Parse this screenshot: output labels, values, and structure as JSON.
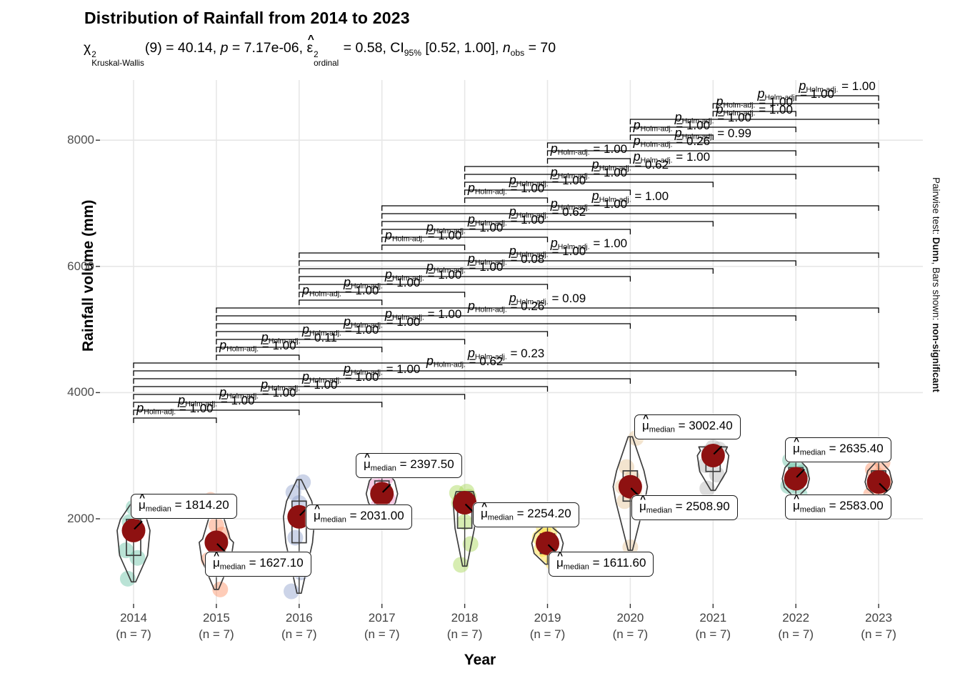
{
  "header": {
    "title": "Distribution of Rainfall from 2014 to 2023",
    "subtitle_segments": [
      {
        "text": "χ",
        "stack": {
          "sup": "2",
          "sub": "Kruskal-Wallis"
        }
      },
      {
        "text": "(9) = 40.14, "
      },
      {
        "text": "p",
        "italic": true
      },
      {
        "text": " = 7.17e-06, "
      },
      {
        "text": "ε",
        "hat": true,
        "stack": {
          "sup": "2",
          "sub": "ordinal"
        }
      },
      {
        "text": " = 0.58, CI"
      },
      {
        "text": "",
        "sub": "95%"
      },
      {
        "text": " [0.52, 1.00], "
      },
      {
        "text": "n",
        "italic": true
      },
      {
        "text": "",
        "sub": "obs"
      },
      {
        "text": " = 70"
      }
    ]
  },
  "caption_segments": [
    {
      "text": "Pairwise test: "
    },
    {
      "text": "Dunn",
      "bold": true
    },
    {
      "text": ", Bars shown: "
    },
    {
      "text": "non-significant",
      "bold": true
    }
  ],
  "y_axis": {
    "label": "Rainfall volume (mm)",
    "ticks": [
      8000,
      6000,
      4000,
      2000
    ]
  },
  "x_axis": {
    "label": "Year"
  },
  "median_label_prefix": {
    "symbol": "μ",
    "hat": "^",
    "subscript": "median",
    "equals": " = "
  },
  "bracket_label_prefix": {
    "symbol": "p",
    "subscript": "Holm-adj.",
    "equals": " = "
  },
  "colors": {
    "median_point": "#8e1111",
    "violin_outline": "#3d3d3d",
    "box_outline": "#3d3d3d",
    "grid_major": "#e7e7e7",
    "axis_tick": "#333333",
    "tick_text": "#4e4e4e",
    "bracket_line": "#000000"
  },
  "chart_data": {
    "type": "violin",
    "title": "Distribution of Rainfall from 2014 to 2023",
    "xlabel": "Year",
    "ylabel": "Rainfall volume (mm)",
    "ylim": [
      600,
      8900
    ],
    "y_major_gridlines": [
      2000,
      4000,
      6000,
      8000
    ],
    "legend_position": "none",
    "stats": {
      "test": "Kruskal-Wallis",
      "chi_squared": 40.14,
      "df": 9,
      "p_value": "7.17e-06",
      "epsilon_squared_ordinal": 0.58,
      "ci_95": "[0.52, 1.00]",
      "n_obs": 70,
      "pairwise_test": "Dunn",
      "p_adjust_method": "Holm",
      "bars_shown": "non-significant"
    },
    "groups": [
      {
        "year": "2014",
        "n_label": "(n = 7)",
        "n": 7,
        "median": 1814.2,
        "median_label": "1814.20",
        "five_num": [
          1000,
          1420,
          1814,
          1990,
          2250
        ],
        "points": [
          1050,
          1380,
          1500,
          1814,
          1950,
          2100,
          2180
        ],
        "jitter_color": "#66C2A5",
        "violin_halfwidth": 23,
        "violin_topwidth": 3
      },
      {
        "year": "2015",
        "n_label": "(n = 7)",
        "n": 7,
        "median": 1627.1,
        "median_label": "1627.10",
        "five_num": [
          880,
          1350,
          1627,
          1680,
          2300
        ],
        "points": [
          880,
          1350,
          1500,
          1627,
          1750,
          1900,
          2300
        ],
        "jitter_color": "#FC8D62",
        "violin_halfwidth": 24,
        "violin_topwidth": 3
      },
      {
        "year": "2016",
        "n_label": "(n = 7)",
        "n": 7,
        "median": 2031.0,
        "median_label": "2031.00",
        "five_num": [
          820,
          1620,
          2031,
          2280,
          2620
        ],
        "points": [
          850,
          1150,
          1700,
          2031,
          2250,
          2420,
          2580
        ],
        "jitter_color": "#8DA0CB",
        "violin_halfwidth": 22,
        "violin_topwidth": 3
      },
      {
        "year": "2017",
        "n_label": "(n = 7)",
        "n": 7,
        "median": 2397.5,
        "median_label": "2397.50",
        "five_num": [
          2050,
          2250,
          2397,
          2600,
          2800
        ],
        "points": [
          2080,
          2200,
          2320,
          2397,
          2520,
          2650,
          2780
        ],
        "jitter_color": "#E78AC3",
        "violin_halfwidth": 22,
        "violin_topwidth": 3
      },
      {
        "year": "2018",
        "n_label": "(n = 7)",
        "n": 7,
        "median": 2254.2,
        "median_label": "2254.20",
        "five_num": [
          1250,
          1850,
          2254,
          2400,
          2430
        ],
        "points": [
          1270,
          1600,
          1950,
          2254,
          2350,
          2410,
          2430
        ],
        "jitter_color": "#A6D854",
        "violin_halfwidth": 16,
        "violin_topwidth": 12
      },
      {
        "year": "2019",
        "n_label": "(n = 7)",
        "n": 7,
        "median": 1611.6,
        "median_label": "1611.60",
        "five_num": [
          1280,
          1450,
          1611,
          1760,
          1900
        ],
        "points": [
          1300,
          1430,
          1520,
          1611,
          1700,
          1790,
          1870
        ],
        "jitter_color": "#FFD92F",
        "violin_halfwidth": 22,
        "violin_topwidth": 3
      },
      {
        "year": "2020",
        "n_label": "(n = 7)",
        "n": 7,
        "median": 2508.9,
        "median_label": "2508.90",
        "five_num": [
          1500,
          2280,
          2509,
          2760,
          3300
        ],
        "points": [
          1550,
          2280,
          2400,
          2509,
          2650,
          2820,
          3280
        ],
        "jitter_color": "#E5C494",
        "violin_halfwidth": 24,
        "violin_topwidth": 3
      },
      {
        "year": "2021",
        "n_label": "(n = 7)",
        "n": 7,
        "median": 3002.4,
        "median_label": "3002.40",
        "five_num": [
          2450,
          2750,
          3002,
          3080,
          3140
        ],
        "points": [
          2480,
          2700,
          2850,
          3002,
          3060,
          3100,
          3130
        ],
        "jitter_color": "#B3B3B3",
        "violin_halfwidth": 22,
        "violin_topwidth": 20
      },
      {
        "year": "2022",
        "n_label": "(n = 7)",
        "n": 7,
        "median": 2635.4,
        "median_label": "2635.40",
        "five_num": [
          2350,
          2500,
          2635,
          2810,
          2960
        ],
        "points": [
          2380,
          2520,
          2590,
          2635,
          2730,
          2820,
          2930
        ],
        "jitter_color": "#66C2A5",
        "violin_halfwidth": 19,
        "violin_topwidth": 3
      },
      {
        "year": "2023",
        "n_label": "(n = 7)",
        "n": 7,
        "median": 2583.0,
        "median_label": "2583.00",
        "five_num": [
          2350,
          2480,
          2583,
          2760,
          2910
        ],
        "points": [
          2380,
          2500,
          2550,
          2583,
          2680,
          2780,
          2890
        ],
        "jitter_color": "#FC8D62",
        "violin_halfwidth": 19,
        "violin_topwidth": 3
      }
    ],
    "comparisons": [
      {
        "g1": "2014",
        "g2": "2015",
        "p": "1.00",
        "level": 0
      },
      {
        "g1": "2014",
        "g2": "2016",
        "p": "1.00",
        "level": 1
      },
      {
        "g1": "2014",
        "g2": "2017",
        "p": "1.00",
        "level": 2
      },
      {
        "g1": "2014",
        "g2": "2018",
        "p": "1.00",
        "level": 3
      },
      {
        "g1": "2014",
        "g2": "2019",
        "p": "1.00",
        "level": 4
      },
      {
        "g1": "2014",
        "g2": "2020",
        "p": "1.00",
        "level": 5
      },
      {
        "g1": "2014",
        "g2": "2022",
        "p": "0.62",
        "level": 6
      },
      {
        "g1": "2014",
        "g2": "2023",
        "p": "0.23",
        "level": 7
      },
      {
        "g1": "2015",
        "g2": "2016",
        "p": "1.00",
        "level": 8
      },
      {
        "g1": "2015",
        "g2": "2017",
        "p": "0.11",
        "level": 9
      },
      {
        "g1": "2015",
        "g2": "2018",
        "p": "1.00",
        "level": 10
      },
      {
        "g1": "2015",
        "g2": "2019",
        "p": "1.00",
        "level": 11
      },
      {
        "g1": "2015",
        "g2": "2020",
        "p": "1.00",
        "level": 12
      },
      {
        "g1": "2015",
        "g2": "2022",
        "p": "0.26",
        "level": 13
      },
      {
        "g1": "2015",
        "g2": "2023",
        "p": "0.09",
        "level": 14
      },
      {
        "g1": "2016",
        "g2": "2017",
        "p": "1.00",
        "level": 15
      },
      {
        "g1": "2016",
        "g2": "2018",
        "p": "1.00",
        "level": 16
      },
      {
        "g1": "2016",
        "g2": "2019",
        "p": "1.00",
        "level": 17
      },
      {
        "g1": "2016",
        "g2": "2020",
        "p": "1.00",
        "level": 18
      },
      {
        "g1": "2016",
        "g2": "2021",
        "p": "0.08",
        "level": 19
      },
      {
        "g1": "2016",
        "g2": "2022",
        "p": "1.00",
        "level": 20
      },
      {
        "g1": "2016",
        "g2": "2023",
        "p": "1.00",
        "level": 21
      },
      {
        "g1": "2017",
        "g2": "2018",
        "p": "1.00",
        "level": 22
      },
      {
        "g1": "2017",
        "g2": "2019",
        "p": "1.00",
        "level": 23
      },
      {
        "g1": "2017",
        "g2": "2020",
        "p": "1.00",
        "level": 24
      },
      {
        "g1": "2017",
        "g2": "2021",
        "p": "0.62",
        "level": 25
      },
      {
        "g1": "2017",
        "g2": "2022",
        "p": "1.00",
        "level": 26
      },
      {
        "g1": "2017",
        "g2": "2023",
        "p": "1.00",
        "level": 27
      },
      {
        "g1": "2018",
        "g2": "2019",
        "p": "1.00",
        "level": 28
      },
      {
        "g1": "2018",
        "g2": "2020",
        "p": "1.00",
        "level": 29
      },
      {
        "g1": "2018",
        "g2": "2021",
        "p": "1.00",
        "level": 30
      },
      {
        "g1": "2018",
        "g2": "2022",
        "p": "0.62",
        "level": 31
      },
      {
        "g1": "2018",
        "g2": "2023",
        "p": "1.00",
        "level": 32
      },
      {
        "g1": "2019",
        "g2": "2020",
        "p": "1.00",
        "level": 33
      },
      {
        "g1": "2019",
        "g2": "2022",
        "p": "0.26",
        "level": 34
      },
      {
        "g1": "2019",
        "g2": "2023",
        "p": "0.99",
        "level": 35
      },
      {
        "g1": "2020",
        "g2": "2021",
        "p": "1.00",
        "level": 36
      },
      {
        "g1": "2020",
        "g2": "2022",
        "p": "1.00",
        "level": 37
      },
      {
        "g1": "2020",
        "g2": "2023",
        "p": "1.00",
        "level": 38
      },
      {
        "g1": "2021",
        "g2": "2022",
        "p": "1.00",
        "level": 39
      },
      {
        "g1": "2021",
        "g2": "2023",
        "p": "1.00",
        "level": 40
      },
      {
        "g1": "2022",
        "g2": "2023",
        "p": "1.00",
        "level": 41
      }
    ]
  }
}
